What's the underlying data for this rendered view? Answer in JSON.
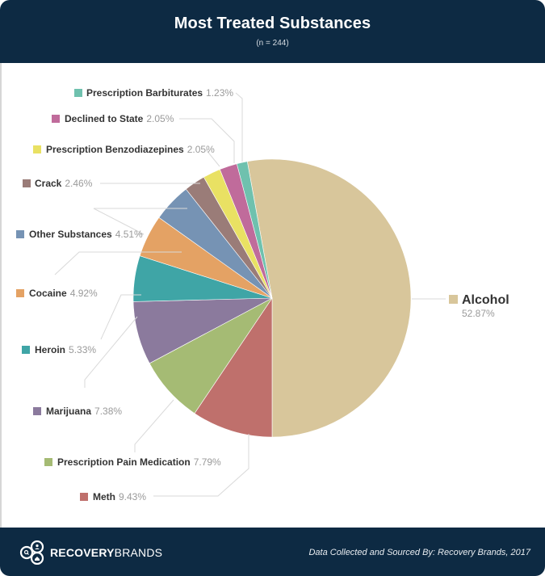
{
  "header": {
    "title": "Most Treated Substances",
    "subtitle": "(n = 244)"
  },
  "footer": {
    "logo_bold": "RECOVERY",
    "logo_light": "BRANDS",
    "source": "Data Collected and Sourced By: Recovery Brands, 2017"
  },
  "colors": {
    "header_bg": "#0d2a43",
    "leader_line": "#d9d9d9"
  },
  "chart_data": {
    "type": "pie",
    "title": "Most Treated Substances",
    "subtitle": "(n = 244)",
    "legend_position": "outside labels with leader lines",
    "categories": [
      "Alcohol",
      "Meth",
      "Prescription Pain Medication",
      "Marijuana",
      "Heroin",
      "Cocaine",
      "Other Substances",
      "Crack",
      "Prescription Benzodiazepines",
      "Declined to State",
      "Prescription Barbiturates"
    ],
    "values": [
      52.87,
      9.43,
      7.79,
      7.38,
      5.33,
      4.92,
      4.51,
      2.46,
      2.05,
      2.05,
      1.23
    ],
    "value_labels": [
      "52.87%",
      "9.43%",
      "7.79%",
      "7.38%",
      "5.33%",
      "4.92%",
      "4.51%",
      "2.46%",
      "2.05%",
      "2.05%",
      "1.23%"
    ],
    "colors": [
      "#d8c69b",
      "#bf706c",
      "#a5bb74",
      "#8b7a9d",
      "#3fa5a6",
      "#e4a264",
      "#7693b4",
      "#9a7c78",
      "#e9e163",
      "#c06b9b",
      "#6fc1ae"
    ],
    "unit": "%"
  },
  "slices": [
    {
      "name": "Alcohol",
      "pct": "52.87%",
      "color": "#d8c69b"
    },
    {
      "name": "Meth",
      "pct": "9.43%",
      "color": "#bf706c"
    },
    {
      "name": "Prescription Pain Medication",
      "pct": "7.79%",
      "color": "#a5bb74"
    },
    {
      "name": "Marijuana",
      "pct": "7.38%",
      "color": "#8b7a9d"
    },
    {
      "name": "Heroin",
      "pct": "5.33%",
      "color": "#3fa5a6"
    },
    {
      "name": "Cocaine",
      "pct": "4.92%",
      "color": "#e4a264"
    },
    {
      "name": "Other Substances",
      "pct": "4.51%",
      "color": "#7693b4"
    },
    {
      "name": "Crack",
      "pct": "2.46%",
      "color": "#9a7c78"
    },
    {
      "name": "Prescription Benzodiazepines",
      "pct": "2.05%",
      "color": "#e9e163"
    },
    {
      "name": "Declined to State",
      "pct": "2.05%",
      "color": "#c06b9b"
    },
    {
      "name": "Prescription Barbiturates",
      "pct": "1.23%",
      "color": "#6fc1ae"
    }
  ]
}
